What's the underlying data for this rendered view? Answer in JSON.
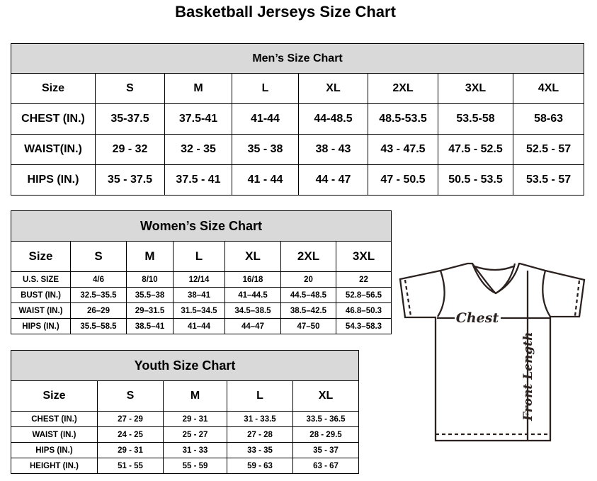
{
  "title": "Basketball Jerseys Size Chart",
  "men": {
    "caption": "Men’s Size Chart",
    "headers": [
      "Size",
      "S",
      "M",
      "L",
      "XL",
      "2XL",
      "3XL",
      "4XL"
    ],
    "rows": [
      [
        "CHEST (IN.)",
        "35-37.5",
        "37.5-41",
        "41-44",
        "44-48.5",
        "48.5-53.5",
        "53.5-58",
        "58-63"
      ],
      [
        "WAIST(IN.)",
        "29 - 32",
        "32 - 35",
        "35 - 38",
        "38 - 43",
        "43 - 47.5",
        "47.5 - 52.5",
        "52.5 - 57"
      ],
      [
        "HIPS (IN.)",
        "35 - 37.5",
        "37.5 - 41",
        "41 - 44",
        "44 - 47",
        "47 - 50.5",
        "50.5 - 53.5",
        "53.5 - 57"
      ]
    ]
  },
  "women": {
    "caption": "Women’s Size Chart",
    "headers": [
      "Size",
      "S",
      "M",
      "L",
      "XL",
      "2XL",
      "3XL"
    ],
    "rows": [
      [
        "U.S. SIZE",
        "4/6",
        "8/10",
        "12/14",
        "16/18",
        "20",
        "22"
      ],
      [
        "BUST (IN.)",
        "32.5–35.5",
        "35.5–38",
        "38–41",
        "41–44.5",
        "44.5–48.5",
        "52.8–56.5"
      ],
      [
        "WAIST (IN.)",
        "26–29",
        "29–31.5",
        "31.5–34.5",
        "34.5–38.5",
        "38.5–42.5",
        "46.8–50.3"
      ],
      [
        "HIPS (IN.)",
        "35.5–58.5",
        "38.5–41",
        "41–44",
        "44–47",
        "47–50",
        "54.3–58.3"
      ]
    ]
  },
  "youth": {
    "caption": "Youth Size Chart",
    "headers": [
      "Size",
      "S",
      "M",
      "L",
      "XL"
    ],
    "rows": [
      [
        "CHEST (IN.)",
        "27 - 29",
        "29 - 31",
        "31 - 33.5",
        "33.5 - 36.5"
      ],
      [
        "WAIST (IN.)",
        "24 - 25",
        "25 - 27",
        "27 - 28",
        "28 - 29.5"
      ],
      [
        "HIPS (IN.)",
        "29 - 31",
        "31 - 33",
        "33 - 35",
        "35 - 37"
      ],
      [
        "HEIGHT (IN.)",
        "51 - 55",
        "55 - 59",
        "59 - 63",
        "63 - 67"
      ]
    ]
  },
  "diagram": {
    "chest_label": "Chest",
    "length_label": "Front Length"
  }
}
